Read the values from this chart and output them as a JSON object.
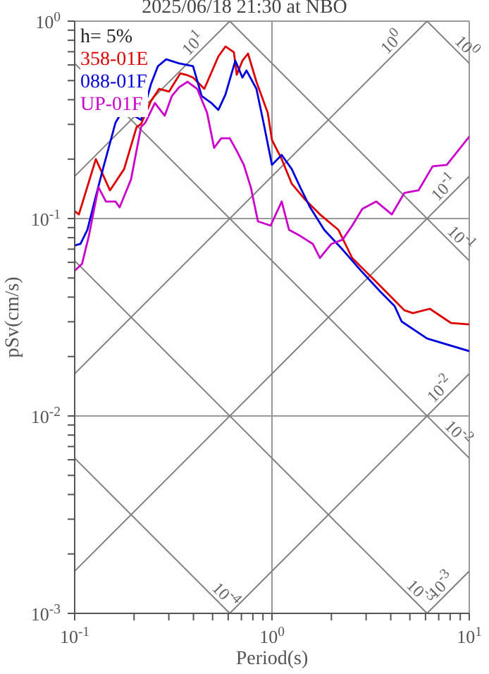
{
  "chart_data": {
    "type": "line",
    "title": "2025/06/18 21:30 at NBO",
    "xlabel": "Period(s)",
    "ylabel": "pSv(cm/s)",
    "legend_title": "h= 5%",
    "legend": "top left",
    "grid": true,
    "log": "xy",
    "xlim": [
      0.1,
      10
    ],
    "ylim": [
      0.001,
      1
    ],
    "xticks": [
      {
        "value": 0.1,
        "label": "10$^{-1}$"
      },
      {
        "value": 0.2,
        "label": null
      },
      {
        "value": 0.3,
        "label": null
      },
      {
        "value": 0.4,
        "label": null
      },
      {
        "value": 0.5,
        "label": null
      },
      {
        "value": 0.6,
        "label": null
      },
      {
        "value": 0.7,
        "label": null
      },
      {
        "value": 0.8,
        "label": null
      },
      {
        "value": 0.9,
        "label": null
      },
      {
        "value": 1,
        "label": "10$^{0}$"
      },
      {
        "value": 2,
        "label": null
      },
      {
        "value": 3,
        "label": null
      },
      {
        "value": 4,
        "label": null
      },
      {
        "value": 5,
        "label": null
      },
      {
        "value": 6,
        "label": null
      },
      {
        "value": 7,
        "label": null
      },
      {
        "value": 8,
        "label": null
      },
      {
        "value": 9,
        "label": null
      },
      {
        "value": 10,
        "label": "10$^{1}$"
      }
    ],
    "yticks": [
      {
        "value": 0.001,
        "label": "10$^{-3}$"
      },
      {
        "value": 0.002,
        "label": null
      },
      {
        "value": 0.003,
        "label": null
      },
      {
        "value": 0.004,
        "label": null
      },
      {
        "value": 0.005,
        "label": null
      },
      {
        "value": 0.006,
        "label": null
      },
      {
        "value": 0.007,
        "label": null
      },
      {
        "value": 0.008,
        "label": null
      },
      {
        "value": 0.009,
        "label": null
      },
      {
        "value": 0.01,
        "label": "10$^{-2}$"
      },
      {
        "value": 0.02,
        "label": null
      },
      {
        "value": 0.03,
        "label": null
      },
      {
        "value": 0.04,
        "label": null
      },
      {
        "value": 0.05,
        "label": null
      },
      {
        "value": 0.06,
        "label": null
      },
      {
        "value": 0.07,
        "label": null
      },
      {
        "value": 0.08,
        "label": null
      },
      {
        "value": 0.09,
        "label": null
      },
      {
        "value": 0.1,
        "label": "10$^{-1}$"
      },
      {
        "value": 0.2,
        "label": null
      },
      {
        "value": 0.3,
        "label": null
      },
      {
        "value": 0.4,
        "label": null
      },
      {
        "value": 0.5,
        "label": null
      },
      {
        "value": 0.6,
        "label": null
      },
      {
        "value": 0.7,
        "label": null
      },
      {
        "value": 0.8,
        "label": null
      },
      {
        "value": 0.9,
        "label": null
      },
      {
        "value": 1,
        "label": "10$^{0}$"
      }
    ],
    "series": [
      {
        "color": "#808080",
        "x": [
          0.1,
          0.611
        ],
        "values": [
          0.00611,
          0.001
        ]
      },
      {
        "color": "#808080",
        "x": [
          0.1,
          6.11
        ],
        "values": [
          0.0611,
          0.001
        ]
      },
      {
        "color": "#808080",
        "x": [
          0.1,
          10
        ],
        "values": [
          0.611,
          0.00611
        ]
      },
      {
        "color": "#808080",
        "x": [
          0.611,
          10
        ],
        "values": [
          1,
          0.0611
        ]
      },
      {
        "color": "#808080",
        "x": [
          6.11,
          10
        ],
        "values": [
          1,
          0.611
        ]
      },
      {
        "color": "#808080",
        "x": [
          6.11,
          10
        ],
        "values": [
          0.001,
          0.001637
        ]
      },
      {
        "color": "#808080",
        "x": [
          0.611,
          10
        ],
        "values": [
          0.001,
          0.01637
        ]
      },
      {
        "color": "#808080",
        "x": [
          0.1,
          10
        ],
        "values": [
          0.001637,
          0.1637
        ]
      },
      {
        "color": "#808080",
        "x": [
          0.1,
          6.11
        ],
        "values": [
          0.01637,
          1
        ]
      },
      {
        "color": "#808080",
        "x": [
          0.1,
          0.611
        ],
        "values": [
          0.1637,
          1
        ]
      },
      {
        "name": "358-01E",
        "color": "#dd0000",
        "x": [
          0.1,
          0.105,
          0.128,
          0.151,
          0.178,
          0.206,
          0.217,
          0.243,
          0.268,
          0.301,
          0.343,
          0.367,
          0.398,
          0.454,
          0.535,
          0.581,
          0.641,
          0.663,
          0.708,
          0.756,
          0.834,
          0.952,
          1.0,
          1.12,
          1.26,
          1.48,
          1.75,
          2.17,
          2.55,
          3.38,
          4.18,
          4.69,
          5.18,
          6.31,
          8.07,
          10
        ],
        "values": [
          0.109,
          0.105,
          0.2,
          0.139,
          0.178,
          0.291,
          0.301,
          0.392,
          0.454,
          0.44,
          0.544,
          0.535,
          0.518,
          0.454,
          0.663,
          0.744,
          0.696,
          0.535,
          0.63,
          0.685,
          0.493,
          0.343,
          0.25,
          0.2,
          0.15,
          0.124,
          0.105,
          0.0877,
          0.0631,
          0.0477,
          0.0385,
          0.0343,
          0.0332,
          0.0349,
          0.0296,
          0.0291
        ]
      },
      {
        "name": "088-01F",
        "color": "#0000dd",
        "x": [
          0.1,
          0.107,
          0.116,
          0.126,
          0.139,
          0.161,
          0.169,
          0.2,
          0.217,
          0.243,
          0.264,
          0.291,
          0.338,
          0.398,
          0.44,
          0.493,
          0.535,
          0.581,
          0.652,
          0.708,
          0.743,
          0.834,
          0.906,
          1.0,
          1.12,
          1.26,
          1.39,
          1.56,
          1.84,
          2.28,
          2.87,
          3.55,
          4.18,
          4.54,
          6.11,
          10
        ],
        "values": [
          0.0731,
          0.0744,
          0.0877,
          0.122,
          0.178,
          0.306,
          0.332,
          0.332,
          0.316,
          0.477,
          0.591,
          0.641,
          0.611,
          0.591,
          0.418,
          0.385,
          0.355,
          0.425,
          0.631,
          0.518,
          0.562,
          0.454,
          0.306,
          0.187,
          0.21,
          0.178,
          0.144,
          0.114,
          0.0877,
          0.0696,
          0.0535,
          0.0425,
          0.0361,
          0.0301,
          0.0247,
          0.0213
        ]
      },
      {
        "name": "UP-01F",
        "color": "#cc00cc",
        "x": [
          0.1,
          0.109,
          0.118,
          0.132,
          0.144,
          0.161,
          0.169,
          0.193,
          0.217,
          0.228,
          0.255,
          0.286,
          0.311,
          0.338,
          0.373,
          0.418,
          0.469,
          0.509,
          0.553,
          0.611,
          0.663,
          0.72,
          0.781,
          0.849,
          0.984,
          1.12,
          1.22,
          1.39,
          1.61,
          1.75,
          2.0,
          2.28,
          2.55,
          2.87,
          3.38,
          4.05,
          4.69,
          5.53,
          6.52,
          7.69,
          10
        ],
        "values": [
          0.0544,
          0.059,
          0.0817,
          0.144,
          0.122,
          0.122,
          0.114,
          0.158,
          0.291,
          0.306,
          0.385,
          0.332,
          0.418,
          0.462,
          0.493,
          0.454,
          0.343,
          0.228,
          0.255,
          0.255,
          0.22,
          0.187,
          0.144,
          0.0968,
          0.0921,
          0.122,
          0.0877,
          0.0817,
          0.0744,
          0.0631,
          0.0744,
          0.0782,
          0.0921,
          0.112,
          0.122,
          0.105,
          0.135,
          0.139,
          0.184,
          0.187,
          0.26
        ]
      }
    ],
    "annotations": [
      {
        "text": "10$^{1}$",
        "x": 0.432,
        "y": 0.707
      },
      {
        "text": "10$^{0}$",
        "x": 4.39,
        "y": 0.719
      },
      {
        "text": "10$^{0}$",
        "x": 8.9,
        "y": 0.687
      },
      {
        "text": "10$^{-1}$",
        "x": 8.07,
        "y": 0.132
      },
      {
        "text": "10$^{-1}$",
        "x": 8.4,
        "y": 0.0727
      },
      {
        "text": "10$^{-2}$",
        "x": 7.7,
        "y": 0.0126
      },
      {
        "text": "10$^{-2}$",
        "x": 8.07,
        "y": 0.00757
      },
      {
        "text": "10$^{-4}$",
        "x": 0.535,
        "y": 0.00114
      },
      {
        "text": "10$^{-3}$",
        "x": 5.18,
        "y": 0.00118
      },
      {
        "text": "10$^{-3}$",
        "x": 7.8,
        "y": 0.00128
      }
    ]
  }
}
